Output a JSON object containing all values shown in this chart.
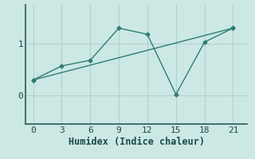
{
  "xlabel": "Humidex (Indice chaleur)",
  "bg_color": "#cce8e4",
  "line_color": "#2e7d74",
  "grid_color": "#aecfca",
  "line1_x": [
    0,
    3,
    6,
    9,
    12,
    15,
    18,
    21
  ],
  "line1_y": [
    0.3,
    0.57,
    0.68,
    1.3,
    1.18,
    0.02,
    1.03,
    1.3
  ],
  "line2_x": [
    0,
    21
  ],
  "line2_y": [
    0.3,
    1.3
  ],
  "xlim": [
    -0.8,
    22.5
  ],
  "ylim": [
    -0.55,
    1.75
  ],
  "xticks": [
    0,
    3,
    6,
    9,
    12,
    15,
    18,
    21
  ],
  "yticks": [
    0,
    1
  ],
  "marker": "D",
  "markersize": 2.5,
  "linewidth": 1.0,
  "tick_fontsize": 8,
  "xlabel_fontsize": 8.5
}
